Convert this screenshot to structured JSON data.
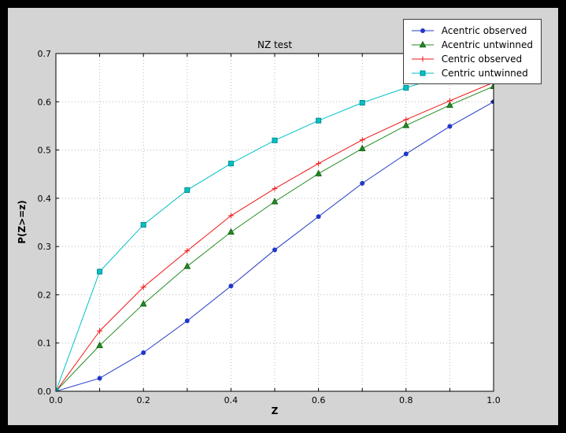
{
  "window": {
    "background": "#000000",
    "figure_background": "#d4d4d4",
    "plot_background": "#ffffff",
    "gridline_color": "#b8b8b8",
    "frame_color": "#000000"
  },
  "chart_data": {
    "type": "line",
    "title": "NZ test",
    "xlabel": "Z",
    "ylabel": "P(Z>=z)",
    "xlim": [
      0.0,
      1.0
    ],
    "ylim": [
      0.0,
      0.7
    ],
    "grid": true,
    "legend_position": "upper right",
    "x": [
      0.0,
      0.1,
      0.2,
      0.3,
      0.4,
      0.5,
      0.6,
      0.7,
      0.8,
      0.9,
      1.0
    ],
    "x_tick_positions": [
      0.0,
      0.2,
      0.4,
      0.6,
      0.8,
      1.0
    ],
    "x_tick_labels": [
      "0.0",
      "0.2",
      "0.4",
      "0.6",
      "0.8",
      "1.0"
    ],
    "y_tick_positions": [
      0.0,
      0.1,
      0.2,
      0.3,
      0.4,
      0.5,
      0.6,
      0.7
    ],
    "y_tick_labels": [
      "0.0",
      "0.1",
      "0.2",
      "0.3",
      "0.4",
      "0.5",
      "0.6",
      "0.7"
    ],
    "series": [
      {
        "name": "Acentric observed",
        "color": "#2038c8",
        "marker": "circle",
        "marker_edge": "#2038c8",
        "values": [
          0.0,
          0.027,
          0.08,
          0.146,
          0.218,
          0.293,
          0.362,
          0.431,
          0.492,
          0.549,
          0.6
        ]
      },
      {
        "name": "Acentric untwinned",
        "color": "#228b22",
        "marker": "triangle",
        "marker_edge": "#166616",
        "values": [
          0.0,
          0.095,
          0.181,
          0.259,
          0.33,
          0.393,
          0.451,
          0.503,
          0.551,
          0.593,
          0.632
        ]
      },
      {
        "name": "Centric observed",
        "color": "#f01414",
        "marker": "plus",
        "marker_edge": "#f01414",
        "values": [
          0.0,
          0.125,
          0.216,
          0.291,
          0.364,
          0.42,
          0.472,
          0.521,
          0.563,
          0.602,
          0.64
        ]
      },
      {
        "name": "Centric untwinned",
        "color": "#00c2c7",
        "marker": "square",
        "marker_edge": "#008a8e",
        "values": [
          0.0,
          0.248,
          0.345,
          0.417,
          0.472,
          0.52,
          0.561,
          0.598,
          0.629,
          0.657,
          0.683
        ]
      }
    ]
  }
}
